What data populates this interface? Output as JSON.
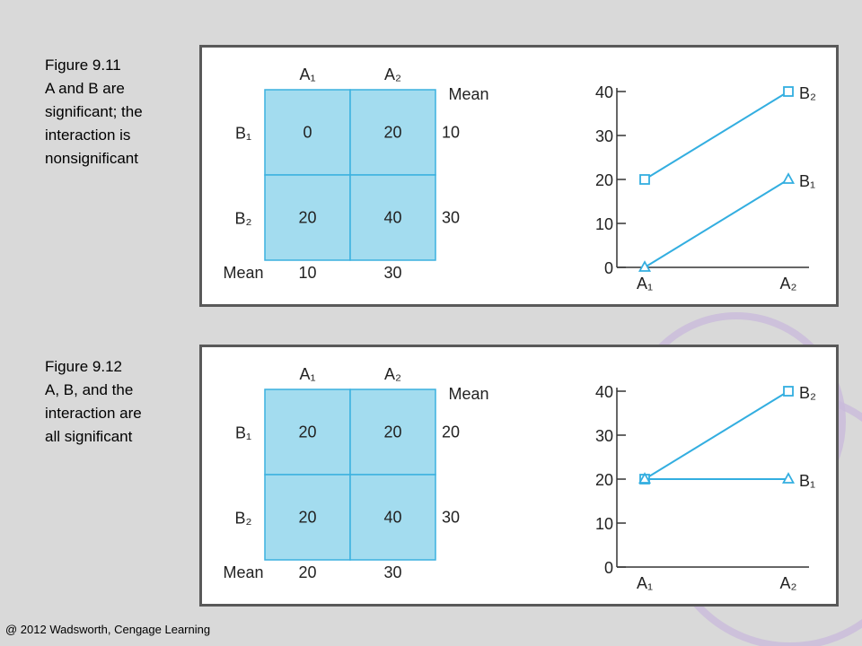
{
  "footer": "@ 2012 Wadsworth, Cengage Learning",
  "colors": {
    "cell_fill": "#a3dcef",
    "cell_stroke": "#3bb1df",
    "line": "#33aee0",
    "deco_ring": "#c8b8dc"
  },
  "figures": [
    {
      "caption": [
        "Figure 9.11",
        "A and B are",
        "significant; the",
        "interaction is",
        "nonsignificant"
      ],
      "table": {
        "col_headers": [
          "A₁",
          "A₂"
        ],
        "row_headers": [
          "B₁",
          "B₂"
        ],
        "cells": [
          [
            0,
            20
          ],
          [
            20,
            40
          ]
        ],
        "mean_label": "Mean",
        "row_means": [
          10,
          30
        ],
        "col_means": [
          10,
          30
        ]
      }
    },
    {
      "caption": [
        "Figure 9.12",
        "A, B, and the",
        "interaction are",
        "all significant"
      ],
      "table": {
        "col_headers": [
          "A₁",
          "A₂"
        ],
        "row_headers": [
          "B₁",
          "B₂"
        ],
        "cells": [
          [
            20,
            20
          ],
          [
            20,
            40
          ]
        ],
        "mean_label": "Mean",
        "row_means": [
          20,
          30
        ],
        "col_means": [
          20,
          30
        ]
      }
    }
  ],
  "chart_data": [
    {
      "type": "line",
      "categories": [
        "A₁",
        "A₂"
      ],
      "series": [
        {
          "name": "B₂",
          "values": [
            20,
            40
          ],
          "marker": "square"
        },
        {
          "name": "B₁",
          "values": [
            0,
            20
          ],
          "marker": "triangle"
        }
      ],
      "ylim": [
        0,
        40
      ],
      "yticks": [
        0,
        10,
        20,
        30,
        40
      ],
      "grid": false
    },
    {
      "type": "line",
      "categories": [
        "A₁",
        "A₂"
      ],
      "series": [
        {
          "name": "B₂",
          "values": [
            20,
            40
          ],
          "marker": "square"
        },
        {
          "name": "B₁",
          "values": [
            20,
            20
          ],
          "marker": "triangle"
        }
      ],
      "ylim": [
        0,
        40
      ],
      "yticks": [
        0,
        10,
        20,
        30,
        40
      ],
      "grid": false
    }
  ]
}
